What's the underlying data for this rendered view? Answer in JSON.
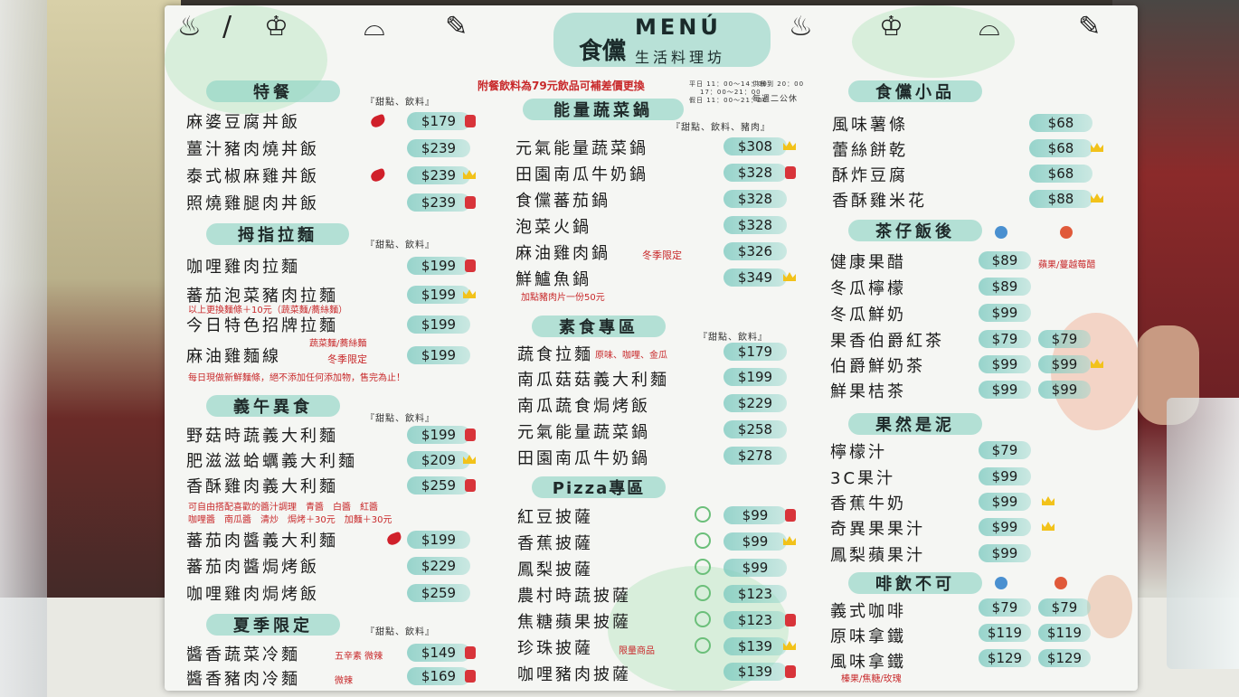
{
  "title": {
    "brand": "MENÚ",
    "name": "食儻",
    "tagline": "生活料理坊"
  },
  "notice": "附餐飲料為79元飲品可補差價更換",
  "hours": {
    "weekday": "平日 11：00～14：00",
    "weekday_eve": "17：00～21：00",
    "holiday": "假日 11：00～21：00",
    "last_order": "供餐到 20：00",
    "closed": "每週二公休"
  },
  "col1": {
    "s1": {
      "title": "特餐",
      "sub": "『甜點、飲料』",
      "items": [
        [
          "麻婆豆腐丼飯",
          "$179"
        ],
        [
          "薑汁豬肉燒丼飯",
          "$239"
        ],
        [
          "泰式椒麻雞丼飯",
          "$239"
        ],
        [
          "照燒雞腿肉丼飯",
          "$239"
        ]
      ]
    },
    "s2": {
      "title": "拇指拉麵",
      "sub": "『甜點、飲料』",
      "items": [
        [
          "咖哩雞肉拉麵",
          "$199"
        ],
        [
          "蕃茄泡菜豬肉拉麵",
          "$199"
        ],
        [
          "今日特色招牌拉麵",
          "$199"
        ],
        [
          "麻油雞麵線",
          "$199"
        ]
      ],
      "note1": "以上更換麵條＋10元（蔬菜麵/蕎絲麵）",
      "note2": "蔬菜麵/蕎絲麵",
      "note3": "冬季限定",
      "note4": "每日現做新鮮麵條，絕不添加任何添加物，售完為止！"
    },
    "s3": {
      "title": "義午異食",
      "sub": "『甜點、飲料』",
      "items": [
        [
          "野菇時蔬義大利麵",
          "$199"
        ],
        [
          "肥滋滋蛤蠣義大利麵",
          "$209"
        ],
        [
          "香酥雞肉義大利麵",
          "$259"
        ],
        [
          "蕃茄肉醬義大利麵",
          "$199"
        ],
        [
          "蕃茄肉醬焗烤飯",
          "$229"
        ],
        [
          "咖哩雞肉焗烤飯",
          "$259"
        ]
      ],
      "note1": "可自由搭配喜歡的醬汁調理　青醬　白醬　紅醬",
      "note2": "咖哩醬　南瓜醬　清炒　焗烤＋30元　加麵＋30元"
    },
    "s4": {
      "title": "夏季限定",
      "sub": "『甜點、飲料』",
      "items": [
        [
          "醬香蔬菜冷麵",
          "$149"
        ],
        [
          "醬香豬肉冷麵",
          "$169"
        ]
      ],
      "note1": "五辛素 微辣",
      "note2": "微辣"
    }
  },
  "col2": {
    "s1": {
      "title": "能量蔬菜鍋",
      "sub": "『甜點、飲料、豬肉』",
      "items": [
        [
          "元氣能量蔬菜鍋",
          "$308"
        ],
        [
          "田園南瓜牛奶鍋",
          "$328"
        ],
        [
          "食儻蕃茄鍋",
          "$328"
        ],
        [
          "泡菜火鍋",
          "$328"
        ],
        [
          "麻油雞肉鍋",
          "$326"
        ],
        [
          "鮮鱸魚鍋",
          "$349"
        ]
      ],
      "note1": "冬季限定",
      "note2": "加點豬肉片一份50元"
    },
    "s2": {
      "title": "素食專區",
      "sub": "『甜點、飲料』",
      "items": [
        [
          "蔬食拉麵",
          "$179"
        ],
        [
          "南瓜菇菇義大利麵",
          "$199"
        ],
        [
          "南瓜蔬食焗烤飯",
          "$229"
        ],
        [
          "元氣能量蔬菜鍋",
          "$258"
        ],
        [
          "田園南瓜牛奶鍋",
          "$278"
        ]
      ],
      "note1": "原味、咖哩、金瓜"
    },
    "s3": {
      "title": "Pizza專區",
      "items": [
        [
          "紅豆披薩",
          "$99"
        ],
        [
          "香蕉披薩",
          "$99"
        ],
        [
          "鳳梨披薩",
          "$99"
        ],
        [
          "農村時蔬披薩",
          "$123"
        ],
        [
          "焦糖蘋果披薩",
          "$123"
        ],
        [
          "珍珠披薩",
          "$139"
        ],
        [
          "咖哩豬肉披薩",
          "$139"
        ]
      ],
      "note1": "限量商品"
    }
  },
  "col3": {
    "s1": {
      "title": "食儻小品",
      "items": [
        [
          "風味薯條",
          "$68"
        ],
        [
          "蕾絲餅乾",
          "$68"
        ],
        [
          "酥炸豆腐",
          "$68"
        ],
        [
          "香酥雞米花",
          "$88"
        ]
      ]
    },
    "s2": {
      "title": "茶仔飯後",
      "items": [
        [
          "健康果醋",
          "$89",
          ""
        ],
        [
          "冬瓜檸檬",
          "$89",
          ""
        ],
        [
          "冬瓜鮮奶",
          "$99",
          ""
        ],
        [
          "果香伯爵紅茶",
          "$79",
          "$79"
        ],
        [
          "伯爵鮮奶茶",
          "$99",
          "$99"
        ],
        [
          "鮮果桔茶",
          "$99",
          "$99"
        ]
      ],
      "note1": "蘋果/蔓越莓醋"
    },
    "s3": {
      "title": "果然是泥",
      "items": [
        [
          "檸檬汁",
          "$79"
        ],
        [
          "3C果汁",
          "$99"
        ],
        [
          "香蕉牛奶",
          "$99"
        ],
        [
          "奇異果果汁",
          "$99"
        ],
        [
          "鳳梨蘋果汁",
          "$99"
        ]
      ]
    },
    "s4": {
      "title": "啡飲不可",
      "items": [
        [
          "義式咖啡",
          "$79",
          "$79"
        ],
        [
          "原味拿鐵",
          "$119",
          "$119"
        ],
        [
          "風味拿鐵",
          "$129",
          "$129"
        ]
      ],
      "note1": "榛果/焦糖/玫瑰"
    }
  },
  "colors": {
    "accent": "#8fd4c4",
    "note_red": "#c8282a",
    "price_bg": "#78c8be"
  }
}
